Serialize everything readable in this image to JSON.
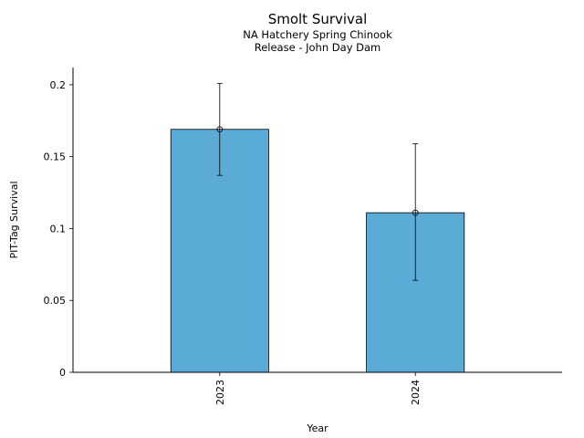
{
  "chart_data": {
    "type": "bar",
    "title": "Smolt Survival",
    "subtitle_lines": [
      "NA Hatchery Spring Chinook",
      "Release - John Day Dam"
    ],
    "xlabel": "Year",
    "ylabel": "PIT-Tag Survival",
    "categories": [
      "2023",
      "2024"
    ],
    "values": [
      0.169,
      0.111
    ],
    "error_low": [
      0.137,
      0.064
    ],
    "error_high": [
      0.201,
      0.159
    ],
    "ylim": [
      0,
      0.212
    ],
    "yticks": [
      0,
      0.05,
      0.1,
      0.15,
      0.2
    ],
    "ytick_labels": [
      "0",
      "0.05",
      "0.1",
      "0.15",
      "0.2"
    ],
    "grid": false,
    "colors": {
      "bar": "#5aacd6",
      "edge": "#000000"
    }
  }
}
